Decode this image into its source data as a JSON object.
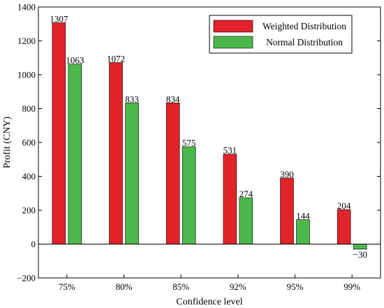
{
  "chart_data": {
    "type": "bar",
    "title": "",
    "xlabel": "Confidence level",
    "ylabel": "Profit (CNY)",
    "categories": [
      "75%",
      "80%",
      "85%",
      "92%",
      "95%",
      "99%"
    ],
    "ylim": [
      -200,
      1400
    ],
    "yticks": [
      -200,
      0,
      200,
      400,
      600,
      800,
      1000,
      1200,
      1400
    ],
    "ytick_labels": [
      "−200",
      "0",
      "200",
      "400",
      "600",
      "800",
      "1000",
      "1200",
      "1400"
    ],
    "legend_position": "top-right",
    "grid": false,
    "series": [
      {
        "name": "Weighted Distribution",
        "color": "#e0242a",
        "values": [
          1307,
          1072,
          834,
          531,
          390,
          204
        ],
        "value_labels": [
          "1307",
          "1072",
          "834",
          "531",
          "390",
          "204"
        ]
      },
      {
        "name": "Normal Distribution",
        "color": "#4cb74a",
        "values": [
          1063,
          833,
          575,
          274,
          144,
          -30
        ],
        "value_labels": [
          "1063",
          "833",
          "575",
          "274",
          "144",
          "−30"
        ]
      }
    ]
  }
}
